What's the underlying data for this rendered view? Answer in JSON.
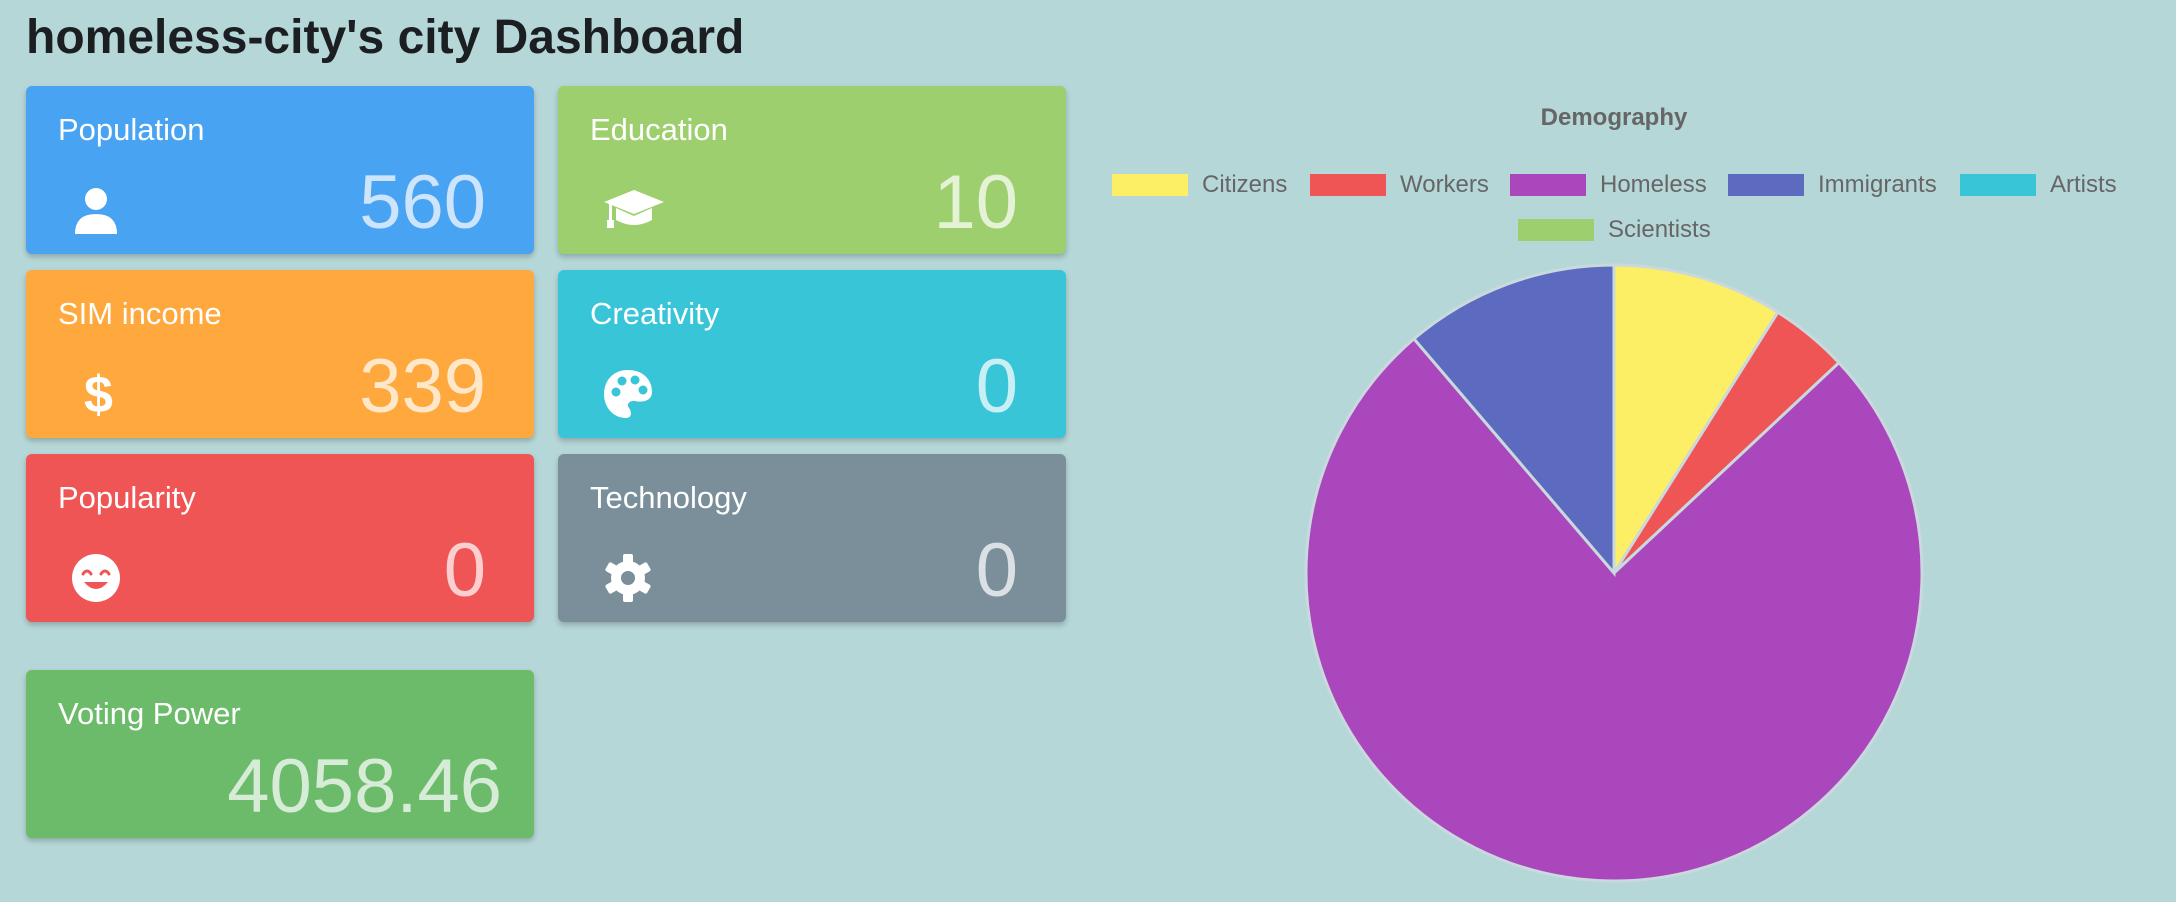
{
  "header": {
    "title": "homeless-city's city Dashboard"
  },
  "cards": {
    "population": {
      "label": "Population",
      "value": "560",
      "icon": "user-icon",
      "color": "#48a3f2"
    },
    "education": {
      "label": "Education",
      "value": "10",
      "icon": "graduation-cap-icon",
      "color": "#9ecf6e"
    },
    "income": {
      "label": "SIM income",
      "value": "339",
      "icon": "dollar-icon",
      "color": "#fea83e"
    },
    "creativity": {
      "label": "Creativity",
      "value": "0",
      "icon": "palette-icon",
      "color": "#39c5d8"
    },
    "popularity": {
      "label": "Popularity",
      "value": "0",
      "icon": "smile-icon",
      "color": "#ef5554"
    },
    "technology": {
      "label": "Technology",
      "value": "0",
      "icon": "gear-icon",
      "color": "#7a8f99"
    },
    "voting": {
      "label": "Voting Power",
      "value": "4058.46",
      "color": "#6bbb6b"
    }
  },
  "chart_data": {
    "type": "pie",
    "title": "Demography",
    "legend_position": "top",
    "categories": [
      "Citizens",
      "Workers",
      "Homeless",
      "Immigrants",
      "Artists",
      "Scientists"
    ],
    "values": [
      50,
      23,
      424,
      63,
      0,
      0
    ],
    "colors": [
      "#fcee65",
      "#ef5554",
      "#ab47bc",
      "#5c6bc0",
      "#39c5d8",
      "#9ecf6e"
    ]
  }
}
